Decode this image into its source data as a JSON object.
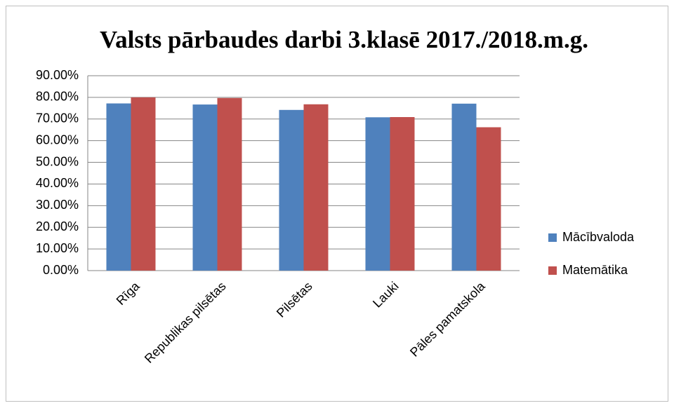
{
  "chart_data": {
    "type": "bar",
    "title": "Valsts pārbaudes darbi  3.klasē 2017./2018.m.g.",
    "categories": [
      "Rīga",
      "Republikas pilsētas",
      "Pilsētas",
      "Lauki",
      "Pāles pamatskola"
    ],
    "series": [
      {
        "name": "Mācībvaloda",
        "color": "#4f81bd",
        "values": [
          77.2,
          76.7,
          74.2,
          70.8,
          77.1
        ]
      },
      {
        "name": "Matemātika",
        "color": "#c0504d",
        "values": [
          80.0,
          79.7,
          76.8,
          70.9,
          66.2
        ]
      }
    ],
    "ylim": [
      0,
      90
    ],
    "yticks": [
      {
        "value": 0,
        "label": "0.00%"
      },
      {
        "value": 10,
        "label": "10.00%"
      },
      {
        "value": 20,
        "label": "20.00%"
      },
      {
        "value": 30,
        "label": "30.00%"
      },
      {
        "value": 40,
        "label": "40.00%"
      },
      {
        "value": 50,
        "label": "50.00%"
      },
      {
        "value": 60,
        "label": "60.00%"
      },
      {
        "value": 70,
        "label": "70.00%"
      },
      {
        "value": 80,
        "label": "80.00%"
      },
      {
        "value": 90,
        "label": "90.00%"
      }
    ],
    "grid": true,
    "legend": "right"
  }
}
